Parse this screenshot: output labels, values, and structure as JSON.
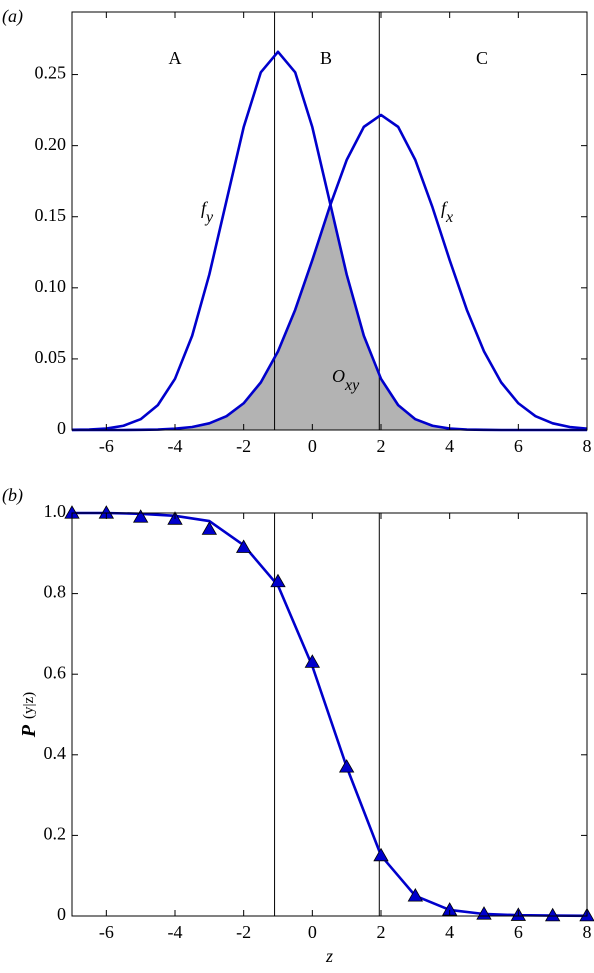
{
  "chart_data": [
    {
      "type": "line",
      "panel_label": "(a)",
      "x": [
        -7,
        -6.5,
        -6,
        -5.5,
        -5,
        -4.5,
        -4,
        -3.5,
        -3,
        -2.5,
        -2,
        -1.5,
        -1,
        -0.5,
        0,
        0.5,
        1,
        1.5,
        2,
        2.5,
        3,
        3.5,
        4,
        4.5,
        5,
        5.5,
        6,
        6.5,
        7,
        7.5,
        8
      ],
      "series": [
        {
          "name": "f",
          "subscript": "y",
          "color": "#0000cc",
          "values": [
            0.0001,
            0.0003,
            0.001,
            0.003,
            0.0076,
            0.0175,
            0.036,
            0.0663,
            0.1094,
            0.1613,
            0.213,
            0.2516,
            0.266,
            0.2516,
            0.213,
            0.1613,
            0.1094,
            0.0663,
            0.036,
            0.0175,
            0.0076,
            0.003,
            0.001,
            0.0003,
            0.0001,
            0,
            0,
            0,
            0,
            0,
            0
          ]
        },
        {
          "name": "f",
          "subscript": "x",
          "color": "#0000cc",
          "values": [
            0,
            0,
            0,
            0,
            0.0001,
            0.0003,
            0.0009,
            0.0021,
            0.0047,
            0.0097,
            0.0188,
            0.0335,
            0.0553,
            0.0845,
            0.1195,
            0.1566,
            0.1899,
            0.2132,
            0.2216,
            0.2132,
            0.1899,
            0.1566,
            0.1195,
            0.0845,
            0.0553,
            0.0335,
            0.0188,
            0.0097,
            0.0047,
            0.0021,
            0.0009
          ]
        }
      ],
      "shade": {
        "label": "O",
        "subscript": "xy",
        "color": "#b3b3b3",
        "values": [
          0,
          0,
          0,
          0,
          0.0001,
          0.0003,
          0.0009,
          0.0021,
          0.0047,
          0.0097,
          0.0188,
          0.0335,
          0.0553,
          0.0845,
          0.1195,
          0.1566,
          0.1094,
          0.0663,
          0.036,
          0.0175,
          0.0076,
          0.003,
          0.001,
          0.0003,
          0.0001,
          0,
          0,
          0,
          0,
          0,
          0
        ]
      },
      "region_labels": [
        "A",
        "B",
        "C"
      ],
      "vlines": [
        -1.1,
        1.95
      ],
      "xlim": [
        -7,
        8
      ],
      "xticks": [
        -6,
        -4,
        -2,
        0,
        2,
        4,
        6,
        8
      ],
      "ylim": [
        0,
        0.294
      ],
      "yticks": [
        0,
        0.05,
        {
          "value": 0.1,
          "label": "0.10"
        },
        0.15,
        {
          "value": 0.2,
          "label": "0.20"
        },
        0.25
      ]
    },
    {
      "type": "line",
      "panel_label": "(b)",
      "x": [
        -7,
        -6,
        -5,
        -4,
        -3,
        -2,
        -1,
        0,
        1,
        2,
        3,
        4,
        5,
        6,
        7,
        8
      ],
      "series": [
        {
          "color": "#0000cc",
          "values": [
            1.0,
            1.0,
            0.998,
            0.993,
            0.98,
            0.92,
            0.82,
            0.62,
            0.37,
            0.15,
            0.05,
            0.015,
            0.005,
            0.002,
            0.001,
            0.0005
          ]
        },
        {
          "color": "#0000cc",
          "marker": "triangle",
          "values": [
            1.0,
            1.0,
            0.99,
            0.985,
            0.96,
            0.915,
            0.83,
            0.63,
            0.37,
            0.15,
            0.05,
            0.015,
            0.005,
            0.002,
            0.001,
            0.001
          ]
        }
      ],
      "vlines": [
        -1.1,
        1.95
      ],
      "xlabel": "z",
      "ylabel": [
        "P",
        "(y|z)"
      ],
      "xlim": [
        -7,
        8
      ],
      "xticks": [
        -6,
        -4,
        -2,
        0,
        2,
        4,
        6,
        8
      ],
      "ylim": [
        0,
        1
      ],
      "yticks": [
        0,
        0.2,
        0.4,
        0.6,
        0.8,
        {
          "value": 1,
          "label": "1.0"
        }
      ]
    }
  ]
}
